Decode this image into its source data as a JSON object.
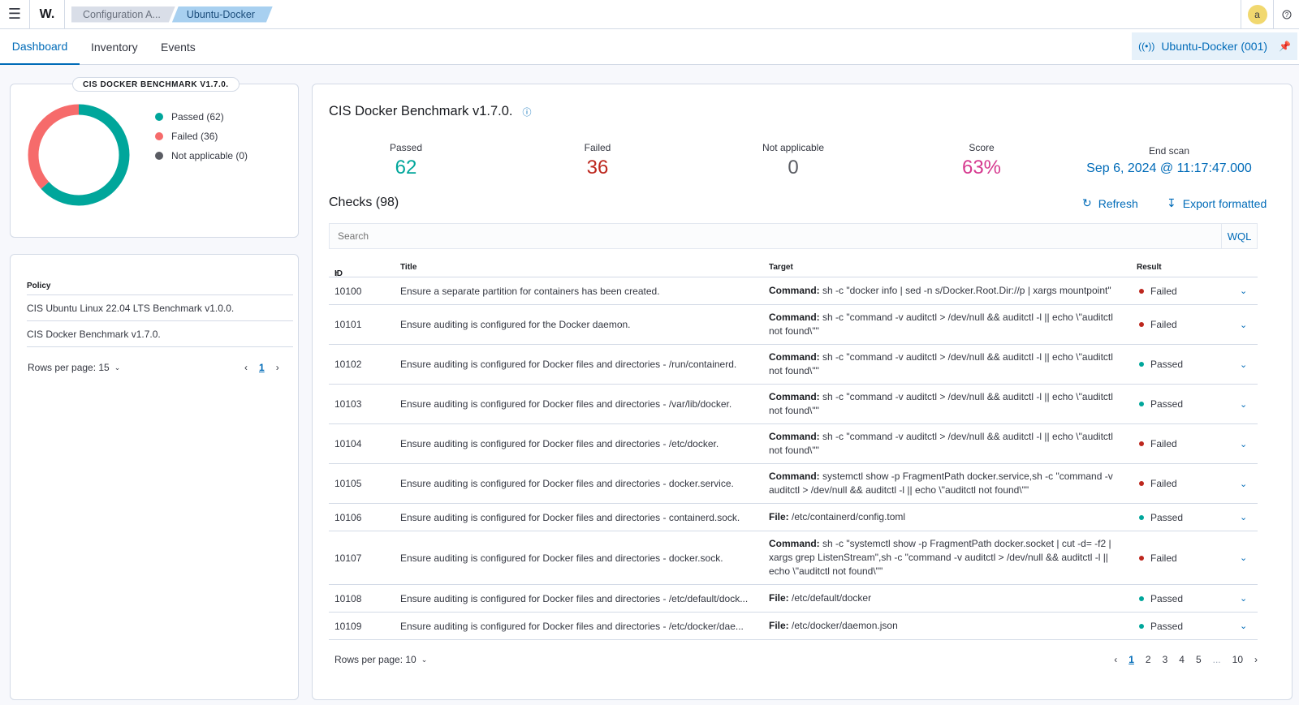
{
  "header": {
    "logo": "W.",
    "breadcrumbs": [
      "Configuration A...",
      "Ubuntu-Docker"
    ],
    "avatar_letter": "a",
    "help_icon": "?"
  },
  "tabs": [
    "Dashboard",
    "Inventory",
    "Events"
  ],
  "agent_selector": {
    "label": "Ubuntu-Docker (001)"
  },
  "summary_panel": {
    "badge": "CIS DOCKER BENCHMARK V1.7.0.",
    "legend": [
      {
        "label": "Passed (62)",
        "color": "#00a69b"
      },
      {
        "label": "Failed (36)",
        "color": "#f66b6b"
      },
      {
        "label": "Not applicable (0)",
        "color": "#5a5c63"
      }
    ],
    "donut": {
      "passed": 62,
      "failed": 36,
      "not_applicable": 0
    }
  },
  "policy_panel": {
    "header": "Policy",
    "rows": [
      "CIS Ubuntu Linux 22.04 LTS Benchmark v1.0.0.",
      "CIS Docker Benchmark v1.7.0."
    ],
    "rows_per_page": "Rows per page: 15",
    "current_page": "1"
  },
  "main": {
    "title": "CIS Docker Benchmark v1.7.0.",
    "stats": {
      "passed_label": "Passed",
      "passed": "62",
      "failed_label": "Failed",
      "failed": "36",
      "na_label": "Not applicable",
      "na": "0",
      "score_label": "Score",
      "score": "63%",
      "end_label": "End scan",
      "end": "Sep 6, 2024 @ 11:17:47.000"
    },
    "checks_title": "Checks (98)",
    "refresh": "Refresh",
    "export": "Export formatted",
    "search_placeholder": "Search",
    "wql": "WQL",
    "columns": [
      "ID",
      "Title",
      "Target",
      "Result"
    ],
    "rows": [
      {
        "id": "10100",
        "title": "Ensure a separate partition for containers has been created.",
        "target_label": "Command:",
        "target": "sh -c \"docker info | sed -n s/Docker.Root.Dir://p | xargs mountpoint\"",
        "result": "Failed"
      },
      {
        "id": "10101",
        "title": "Ensure auditing is configured for the Docker daemon.",
        "target_label": "Command:",
        "target": "sh -c \"command -v auditctl > /dev/null && auditctl -l || echo \\\"auditctl not found\\\"\"",
        "result": "Failed"
      },
      {
        "id": "10102",
        "title": "Ensure auditing is configured for Docker files and directories - /run/containerd.",
        "target_label": "Command:",
        "target": "sh -c \"command -v auditctl > /dev/null && auditctl -l || echo \\\"auditctl not found\\\"\"",
        "result": "Passed"
      },
      {
        "id": "10103",
        "title": "Ensure auditing is configured for Docker files and directories - /var/lib/docker.",
        "target_label": "Command:",
        "target": "sh -c \"command -v auditctl > /dev/null && auditctl -l || echo \\\"auditctl not found\\\"\"",
        "result": "Passed"
      },
      {
        "id": "10104",
        "title": "Ensure auditing is configured for Docker files and directories - /etc/docker.",
        "target_label": "Command:",
        "target": "sh -c \"command -v auditctl > /dev/null && auditctl -l || echo \\\"auditctl not found\\\"\"",
        "result": "Failed"
      },
      {
        "id": "10105",
        "title": "Ensure auditing is configured for Docker files and directories - docker.service.",
        "target_label": "Command:",
        "target": "systemctl show -p FragmentPath docker.service,sh -c \"command -v auditctl > /dev/null && auditctl -l || echo \\\"auditctl not found\\\"\"",
        "result": "Failed"
      },
      {
        "id": "10106",
        "title": "Ensure auditing is configured for Docker files and directories - containerd.sock.",
        "target_label": "File:",
        "target": "/etc/containerd/config.toml",
        "result": "Passed"
      },
      {
        "id": "10107",
        "title": "Ensure auditing is configured for Docker files and directories - docker.sock.",
        "target_label": "Command:",
        "target": "sh -c \"systemctl show -p FragmentPath docker.socket | cut -d= -f2 | xargs grep ListenStream\",sh -c \"command -v auditctl > /dev/null && auditctl -l || echo \\\"auditctl not found\\\"\"",
        "result": "Failed"
      },
      {
        "id": "10108",
        "title": "Ensure auditing is configured for Docker files and directories - /etc/default/dock...",
        "target_label": "File:",
        "target": "/etc/default/docker",
        "result": "Passed"
      },
      {
        "id": "10109",
        "title": "Ensure auditing is configured for Docker files and directories - /etc/docker/dae...",
        "target_label": "File:",
        "target": "/etc/docker/daemon.json",
        "result": "Passed"
      }
    ],
    "rows_per_page": "Rows per page: 10",
    "pages": [
      "1",
      "2",
      "3",
      "4",
      "5",
      "...",
      "10"
    ]
  },
  "colors": {
    "accent": "#006bb8",
    "passed": "#00a69b",
    "failed": "#f66b6b",
    "score": "#d6398f",
    "failed_text": "#bd271e",
    "na": "#5a5c63"
  }
}
